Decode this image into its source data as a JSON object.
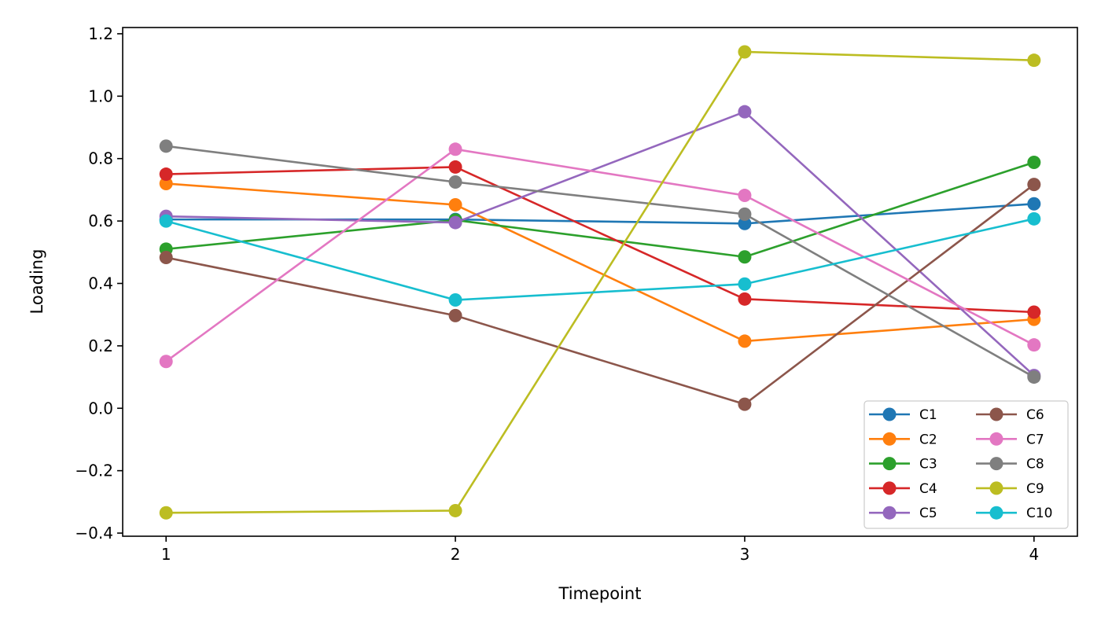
{
  "chart_data": {
    "type": "line",
    "title": "",
    "xlabel": "Timepoint",
    "ylabel": "Loading",
    "x": [
      1,
      2,
      3,
      4
    ],
    "x_ticks": [
      "1",
      "2",
      "3",
      "4"
    ],
    "y_ticks": [
      "−0.4",
      "−0.2",
      "0.0",
      "0.2",
      "0.4",
      "0.6",
      "0.8",
      "1.0",
      "1.2"
    ],
    "y_tick_values": [
      -0.4,
      -0.2,
      0.0,
      0.2,
      0.4,
      0.6,
      0.8,
      1.0,
      1.2
    ],
    "xlim": [
      0.85,
      4.15
    ],
    "ylim": [
      -0.41,
      1.22
    ],
    "grid": false,
    "legend": {
      "placement": "lower-right",
      "columns": 2
    },
    "series": [
      {
        "name": "C1",
        "color": "#1f77b4",
        "values": [
          0.605,
          0.605,
          0.592,
          0.655
        ]
      },
      {
        "name": "C2",
        "color": "#ff7f0e",
        "values": [
          0.72,
          0.652,
          0.215,
          0.285
        ]
      },
      {
        "name": "C3",
        "color": "#2ca02c",
        "values": [
          0.51,
          0.603,
          0.485,
          0.788
        ]
      },
      {
        "name": "C4",
        "color": "#d62728",
        "values": [
          0.75,
          0.773,
          0.35,
          0.308
        ]
      },
      {
        "name": "C5",
        "color": "#9467bd",
        "values": [
          0.615,
          0.595,
          0.95,
          0.105
        ]
      },
      {
        "name": "C6",
        "color": "#8c564b",
        "values": [
          0.483,
          0.297,
          0.013,
          0.717
        ]
      },
      {
        "name": "C7",
        "color": "#e377c2",
        "values": [
          0.15,
          0.83,
          0.682,
          0.203
        ]
      },
      {
        "name": "C8",
        "color": "#7f7f7f",
        "values": [
          0.84,
          0.725,
          0.622,
          0.1
        ]
      },
      {
        "name": "C9",
        "color": "#bcbd22",
        "values": [
          -0.335,
          -0.328,
          1.142,
          1.115
        ]
      },
      {
        "name": "C10",
        "color": "#17becf",
        "values": [
          0.6,
          0.347,
          0.398,
          0.607
        ]
      }
    ]
  }
}
